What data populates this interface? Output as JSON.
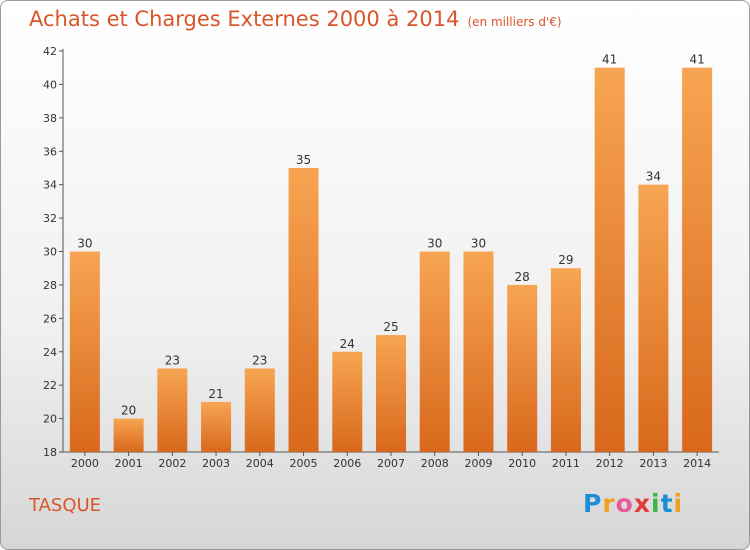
{
  "chart_data": {
    "type": "bar",
    "title": "Achats et Charges Externes 2000 à 2014",
    "subtitle": "(en milliers d'€)",
    "categories": [
      "2000",
      "2001",
      "2002",
      "2003",
      "2004",
      "2005",
      "2006",
      "2007",
      "2008",
      "2009",
      "2010",
      "2011",
      "2012",
      "2013",
      "2014"
    ],
    "values": [
      30,
      20,
      23,
      21,
      23,
      35,
      24,
      25,
      30,
      30,
      28,
      29,
      41,
      34,
      41
    ],
    "ylim": [
      18,
      42
    ],
    "yticks": [
      18,
      20,
      22,
      24,
      26,
      28,
      30,
      32,
      34,
      36,
      38,
      40,
      42
    ],
    "grid": false,
    "data_labels": true,
    "bar_color": "#f08a2e"
  },
  "commune": "TASQUE",
  "logo": {
    "letters": [
      "P",
      "r",
      "o",
      "x",
      "i",
      "t",
      "i"
    ],
    "colors": [
      "#1a8fd8",
      "#f0a020",
      "#e85a9a",
      "#e83a3a",
      "#3ab54a",
      "#1a8fd8",
      "#f0a020"
    ]
  },
  "colors": {
    "title": "#d9562b",
    "axis": "#555555"
  }
}
